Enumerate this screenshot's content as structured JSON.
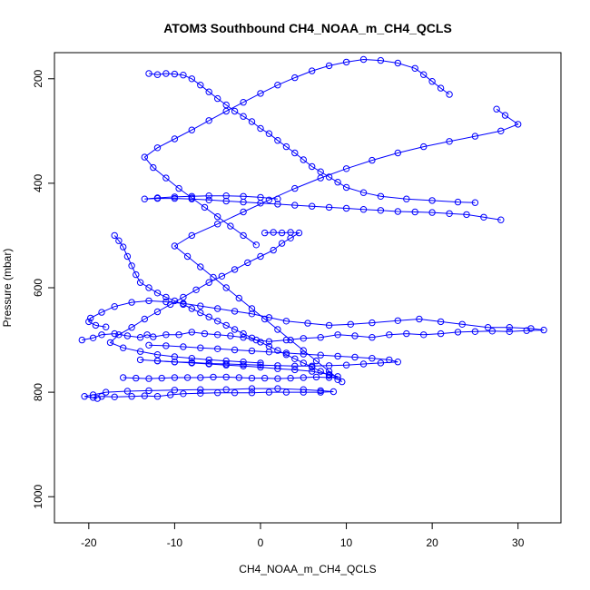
{
  "chart_data": {
    "type": "scatter",
    "title": "ATOM3 Southbound CH4_NOAA_m_CH4_QCLS",
    "xlabel": "CH4_NOAA_m_CH4_QCLS",
    "ylabel": "Pressure (mbar)",
    "xlim": [
      -24,
      35
    ],
    "ylim": [
      1050,
      150
    ],
    "y_reversed": true,
    "x_ticks": [
      -20,
      -10,
      0,
      10,
      20,
      30
    ],
    "y_ticks": [
      200,
      400,
      600,
      800,
      1000
    ],
    "grid": false,
    "legend": "none",
    "marker": "open-circle",
    "connected_by_lines": true,
    "color": "#0000ff",
    "series": [
      {
        "points": [
          [
            -20.8,
            700
          ],
          [
            -19.5,
            696
          ],
          [
            -18.5,
            690
          ],
          [
            -17,
            688
          ],
          [
            -15.5,
            692
          ],
          [
            -14,
            695
          ],
          [
            -13.2,
            690
          ],
          [
            -12.5,
            694
          ],
          [
            -11,
            690
          ],
          [
            -9.5,
            690
          ],
          [
            -8,
            685
          ],
          [
            -6.5,
            688
          ],
          [
            -5,
            690
          ],
          [
            -3.5,
            692
          ],
          [
            -2,
            695
          ],
          [
            -0.5,
            700
          ],
          [
            1,
            703
          ],
          [
            3,
            700
          ],
          [
            5,
            697
          ],
          [
            7,
            695
          ],
          [
            9,
            690
          ],
          [
            11,
            692
          ],
          [
            13,
            695
          ],
          [
            15,
            690
          ],
          [
            17,
            688
          ],
          [
            19,
            690
          ],
          [
            21,
            688
          ],
          [
            23,
            685
          ],
          [
            25,
            684
          ],
          [
            27,
            683
          ],
          [
            29,
            684
          ],
          [
            31,
            682
          ],
          [
            33,
            681
          ],
          [
            31.5,
            678
          ],
          [
            29,
            676
          ],
          [
            26.5,
            676
          ],
          [
            23.5,
            670
          ],
          [
            21,
            665
          ],
          [
            18.5,
            660
          ],
          [
            16,
            663
          ],
          [
            13,
            667
          ],
          [
            10.5,
            670
          ],
          [
            8,
            672
          ],
          [
            5.5,
            668
          ],
          [
            3,
            664
          ],
          [
            1,
            657
          ],
          [
            -1,
            650
          ],
          [
            -3,
            645
          ],
          [
            -5,
            640
          ],
          [
            -7,
            635
          ],
          [
            -9,
            630
          ],
          [
            -11,
            627
          ],
          [
            -13,
            625
          ],
          [
            -15,
            628
          ],
          [
            -17,
            636
          ],
          [
            -18.5,
            647
          ],
          [
            -19.8,
            658
          ],
          [
            -20,
            665
          ],
          [
            -19.2,
            672
          ],
          [
            -18,
            675
          ]
        ]
      },
      {
        "points": [
          [
            -19.5,
            810
          ],
          [
            -18.5,
            808
          ],
          [
            -17,
            809
          ],
          [
            -15,
            808
          ],
          [
            -13.5,
            807
          ],
          [
            -12,
            808
          ],
          [
            -10.5,
            805
          ],
          [
            -9,
            803
          ],
          [
            -7,
            802
          ],
          [
            -5,
            801
          ],
          [
            -3,
            801
          ],
          [
            -1,
            801
          ],
          [
            1,
            800
          ],
          [
            3,
            800
          ],
          [
            5,
            800
          ],
          [
            7,
            800
          ],
          [
            8.5,
            799
          ],
          [
            7,
            797
          ],
          [
            5,
            795
          ],
          [
            2,
            793
          ],
          [
            -1,
            793
          ],
          [
            -4,
            795
          ],
          [
            -7,
            795
          ],
          [
            -10,
            796
          ],
          [
            -13,
            797
          ],
          [
            -15.5,
            798
          ],
          [
            -18,
            800
          ],
          [
            -19.5,
            805
          ],
          [
            -20.5,
            808
          ],
          [
            -19,
            812
          ]
        ]
      },
      {
        "points": [
          [
            -16,
            772
          ],
          [
            -14.5,
            773
          ],
          [
            -13,
            774
          ],
          [
            -11.5,
            773
          ],
          [
            -10,
            772
          ],
          [
            -8.5,
            772
          ],
          [
            -7,
            772
          ],
          [
            -5.5,
            771
          ],
          [
            -4,
            771
          ],
          [
            -2.5,
            772
          ],
          [
            -1,
            773
          ],
          [
            0.5,
            773
          ],
          [
            2,
            774
          ],
          [
            3.5,
            773
          ],
          [
            5,
            772
          ],
          [
            6.5,
            771
          ],
          [
            8,
            772
          ],
          [
            9,
            770
          ],
          [
            8,
            766
          ],
          [
            6,
            760
          ],
          [
            4,
            757
          ],
          [
            2,
            755
          ],
          [
            0,
            752
          ],
          [
            -2,
            750
          ],
          [
            -4,
            748
          ],
          [
            -6,
            746
          ],
          [
            -8,
            744
          ],
          [
            -10,
            742
          ],
          [
            -12,
            740
          ],
          [
            -14,
            738
          ]
        ]
      },
      {
        "points": [
          [
            -13,
            190
          ],
          [
            -12,
            192
          ],
          [
            -11,
            190
          ],
          [
            -10,
            191
          ],
          [
            -9,
            193
          ],
          [
            -8,
            200
          ],
          [
            -7,
            212
          ],
          [
            -6,
            225
          ],
          [
            -5,
            238
          ],
          [
            -4,
            250
          ],
          [
            -3,
            262
          ],
          [
            -2,
            272
          ],
          [
            -1,
            282
          ],
          [
            0,
            295
          ],
          [
            1,
            305
          ],
          [
            2,
            318
          ],
          [
            3,
            330
          ],
          [
            4,
            342
          ],
          [
            5,
            355
          ],
          [
            6,
            368
          ],
          [
            7,
            378
          ],
          [
            8,
            388
          ],
          [
            9,
            398
          ],
          [
            10,
            408
          ],
          [
            12,
            418
          ],
          [
            14,
            425
          ],
          [
            17,
            430
          ],
          [
            20,
            433
          ],
          [
            23,
            436
          ],
          [
            25,
            437
          ]
        ]
      },
      {
        "points": [
          [
            0.5,
            495
          ],
          [
            1.5,
            494
          ],
          [
            2.5,
            495
          ],
          [
            3.5,
            494
          ],
          [
            4.5,
            495
          ],
          [
            3.5,
            505
          ],
          [
            2.5,
            515
          ],
          [
            1.5,
            528
          ],
          [
            0,
            540
          ],
          [
            -1.5,
            552
          ],
          [
            -3,
            565
          ],
          [
            -4.5,
            578
          ],
          [
            -6,
            590
          ],
          [
            -7.5,
            604
          ],
          [
            -9,
            618
          ],
          [
            -10.5,
            632
          ],
          [
            -12,
            646
          ],
          [
            -13.5,
            660
          ],
          [
            -15,
            676
          ],
          [
            -16.5,
            690
          ],
          [
            -17.5,
            705
          ],
          [
            -16,
            715
          ],
          [
            -14,
            722
          ],
          [
            -12,
            728
          ],
          [
            -10,
            732
          ],
          [
            -8,
            735
          ],
          [
            -6,
            738
          ],
          [
            -4,
            740
          ],
          [
            -2,
            742
          ],
          [
            0,
            744
          ]
        ]
      },
      {
        "points": [
          [
            -17,
            500
          ],
          [
            -16.5,
            510
          ],
          [
            -16,
            522
          ],
          [
            -15.5,
            540
          ],
          [
            -15,
            558
          ],
          [
            -14.5,
            575
          ],
          [
            -14,
            590
          ],
          [
            -13,
            600
          ],
          [
            -12,
            610
          ],
          [
            -11,
            618
          ],
          [
            -10,
            625
          ],
          [
            -9,
            632
          ],
          [
            -8,
            640
          ],
          [
            -7,
            648
          ],
          [
            -6,
            656
          ],
          [
            -5,
            664
          ],
          [
            -4,
            672
          ],
          [
            -3,
            680
          ],
          [
            -2,
            688
          ],
          [
            -1,
            696
          ],
          [
            0,
            704
          ],
          [
            1,
            712
          ],
          [
            2,
            720
          ],
          [
            3,
            728
          ],
          [
            4,
            736
          ],
          [
            5,
            744
          ],
          [
            6,
            752
          ],
          [
            7,
            760
          ],
          [
            8,
            768
          ],
          [
            9,
            776
          ]
        ]
      },
      {
        "points": [
          [
            22,
            230
          ],
          [
            21,
            218
          ],
          [
            20,
            205
          ],
          [
            19,
            192
          ],
          [
            18,
            180
          ],
          [
            16,
            170
          ],
          [
            14,
            165
          ],
          [
            12,
            163
          ],
          [
            10,
            168
          ],
          [
            8,
            175
          ],
          [
            6,
            185
          ],
          [
            4,
            198
          ],
          [
            2,
            212
          ],
          [
            0,
            228
          ],
          [
            -2,
            245
          ],
          [
            -4,
            262
          ],
          [
            -6,
            280
          ],
          [
            -8,
            298
          ],
          [
            -10,
            315
          ],
          [
            -12,
            332
          ],
          [
            -13.5,
            350
          ],
          [
            -12.5,
            370
          ],
          [
            -11,
            390
          ],
          [
            -9.5,
            410
          ],
          [
            -8,
            428
          ],
          [
            -6.5,
            446
          ],
          [
            -5,
            464
          ],
          [
            -3.5,
            482
          ],
          [
            -2,
            500
          ],
          [
            -0.5,
            518
          ]
        ]
      },
      {
        "points": [
          [
            27.5,
            258
          ],
          [
            28.5,
            270
          ],
          [
            30,
            287
          ],
          [
            28,
            300
          ],
          [
            25,
            310
          ],
          [
            22,
            320
          ],
          [
            19,
            330
          ],
          [
            16,
            342
          ],
          [
            13,
            356
          ],
          [
            10,
            372
          ],
          [
            7,
            390
          ],
          [
            4,
            410
          ],
          [
            1,
            432
          ],
          [
            -2,
            455
          ],
          [
            -5,
            478
          ],
          [
            -8,
            500
          ],
          [
            -10,
            520
          ],
          [
            -8.5,
            540
          ],
          [
            -7,
            560
          ],
          [
            -5.5,
            580
          ],
          [
            -4,
            600
          ],
          [
            -2.5,
            620
          ],
          [
            -1,
            640
          ],
          [
            0.5,
            660
          ],
          [
            2,
            680
          ],
          [
            3.5,
            700
          ],
          [
            5,
            720
          ],
          [
            6.5,
            740
          ],
          [
            8,
            760
          ],
          [
            9.5,
            780
          ]
        ]
      },
      {
        "points": [
          [
            28,
            470
          ],
          [
            26,
            465
          ],
          [
            24,
            460
          ],
          [
            22,
            458
          ],
          [
            20,
            456
          ],
          [
            18,
            455
          ],
          [
            16,
            454
          ],
          [
            14,
            452
          ],
          [
            12,
            450
          ],
          [
            10,
            448
          ],
          [
            8,
            446
          ],
          [
            6,
            444
          ],
          [
            4,
            442
          ],
          [
            2,
            440
          ],
          [
            0,
            438
          ],
          [
            -2,
            436
          ],
          [
            -4,
            434
          ],
          [
            -6,
            432
          ],
          [
            -8,
            430
          ],
          [
            -10,
            429
          ],
          [
            -12,
            429
          ],
          [
            -13.5,
            430
          ],
          [
            -12,
            428
          ],
          [
            -10,
            426
          ],
          [
            -8,
            425
          ],
          [
            -6,
            424
          ],
          [
            -4,
            424
          ],
          [
            -2,
            425
          ],
          [
            0,
            427
          ],
          [
            2,
            430
          ]
        ]
      },
      {
        "points": [
          [
            -12,
            740
          ],
          [
            -10,
            742
          ],
          [
            -8,
            743
          ],
          [
            -6,
            745
          ],
          [
            -4,
            746
          ],
          [
            -2,
            747
          ],
          [
            0,
            748
          ],
          [
            2,
            749
          ],
          [
            4,
            750
          ],
          [
            6,
            750
          ],
          [
            8,
            749
          ],
          [
            10,
            748
          ],
          [
            12,
            746
          ],
          [
            14,
            744
          ],
          [
            16,
            742
          ],
          [
            15,
            738
          ],
          [
            13,
            735
          ],
          [
            11,
            733
          ],
          [
            9,
            731
          ],
          [
            7,
            729
          ],
          [
            5,
            727
          ],
          [
            3,
            725
          ],
          [
            1,
            723
          ],
          [
            -1,
            721
          ],
          [
            -3,
            719
          ],
          [
            -5,
            717
          ],
          [
            -7,
            715
          ],
          [
            -9,
            713
          ],
          [
            -11,
            711
          ],
          [
            -13,
            710
          ]
        ]
      }
    ]
  }
}
